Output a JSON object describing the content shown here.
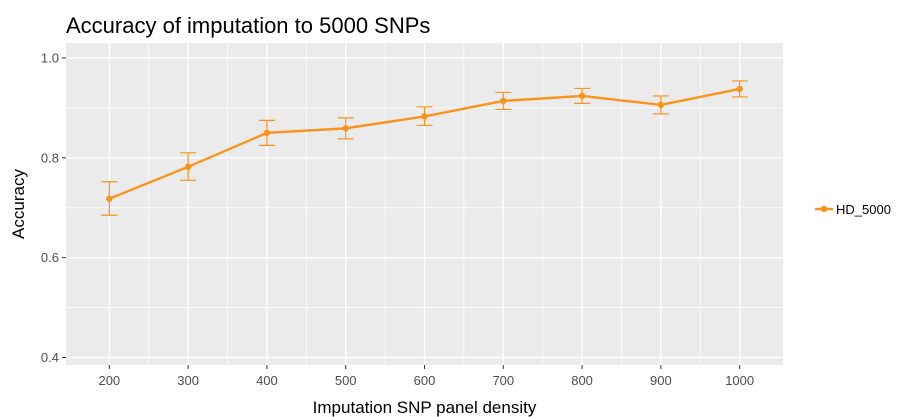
{
  "chart_data": {
    "type": "line",
    "title": "Accuracy of imputation to 5000 SNPs",
    "xlabel": "Imputation SNP panel density",
    "ylabel": "Accuracy",
    "x": [
      200,
      300,
      400,
      500,
      600,
      700,
      800,
      900,
      1000
    ],
    "x_tick_labels": [
      "200",
      "300",
      "400",
      "500",
      "600",
      "700",
      "800",
      "900",
      "1000"
    ],
    "y_ticks": [
      0.4,
      0.6,
      0.8,
      1.0
    ],
    "y_tick_labels": [
      "0.4",
      "0.6",
      "0.8",
      "1.0"
    ],
    "xlim": [
      145,
      1055
    ],
    "ylim": [
      0.385,
      1.03
    ],
    "grid": true,
    "legend_position": "right",
    "series": [
      {
        "name": "HD_5000",
        "color": "#f7941d",
        "values": [
          0.718,
          0.782,
          0.85,
          0.859,
          0.883,
          0.914,
          0.924,
          0.906,
          0.938
        ],
        "err_low": [
          0.685,
          0.755,
          0.825,
          0.838,
          0.865,
          0.897,
          0.909,
          0.888,
          0.922
        ],
        "err_high": [
          0.752,
          0.81,
          0.875,
          0.88,
          0.902,
          0.931,
          0.939,
          0.924,
          0.954
        ]
      }
    ],
    "panel_color": "#ebebeb",
    "grid_color": "#ffffff"
  }
}
